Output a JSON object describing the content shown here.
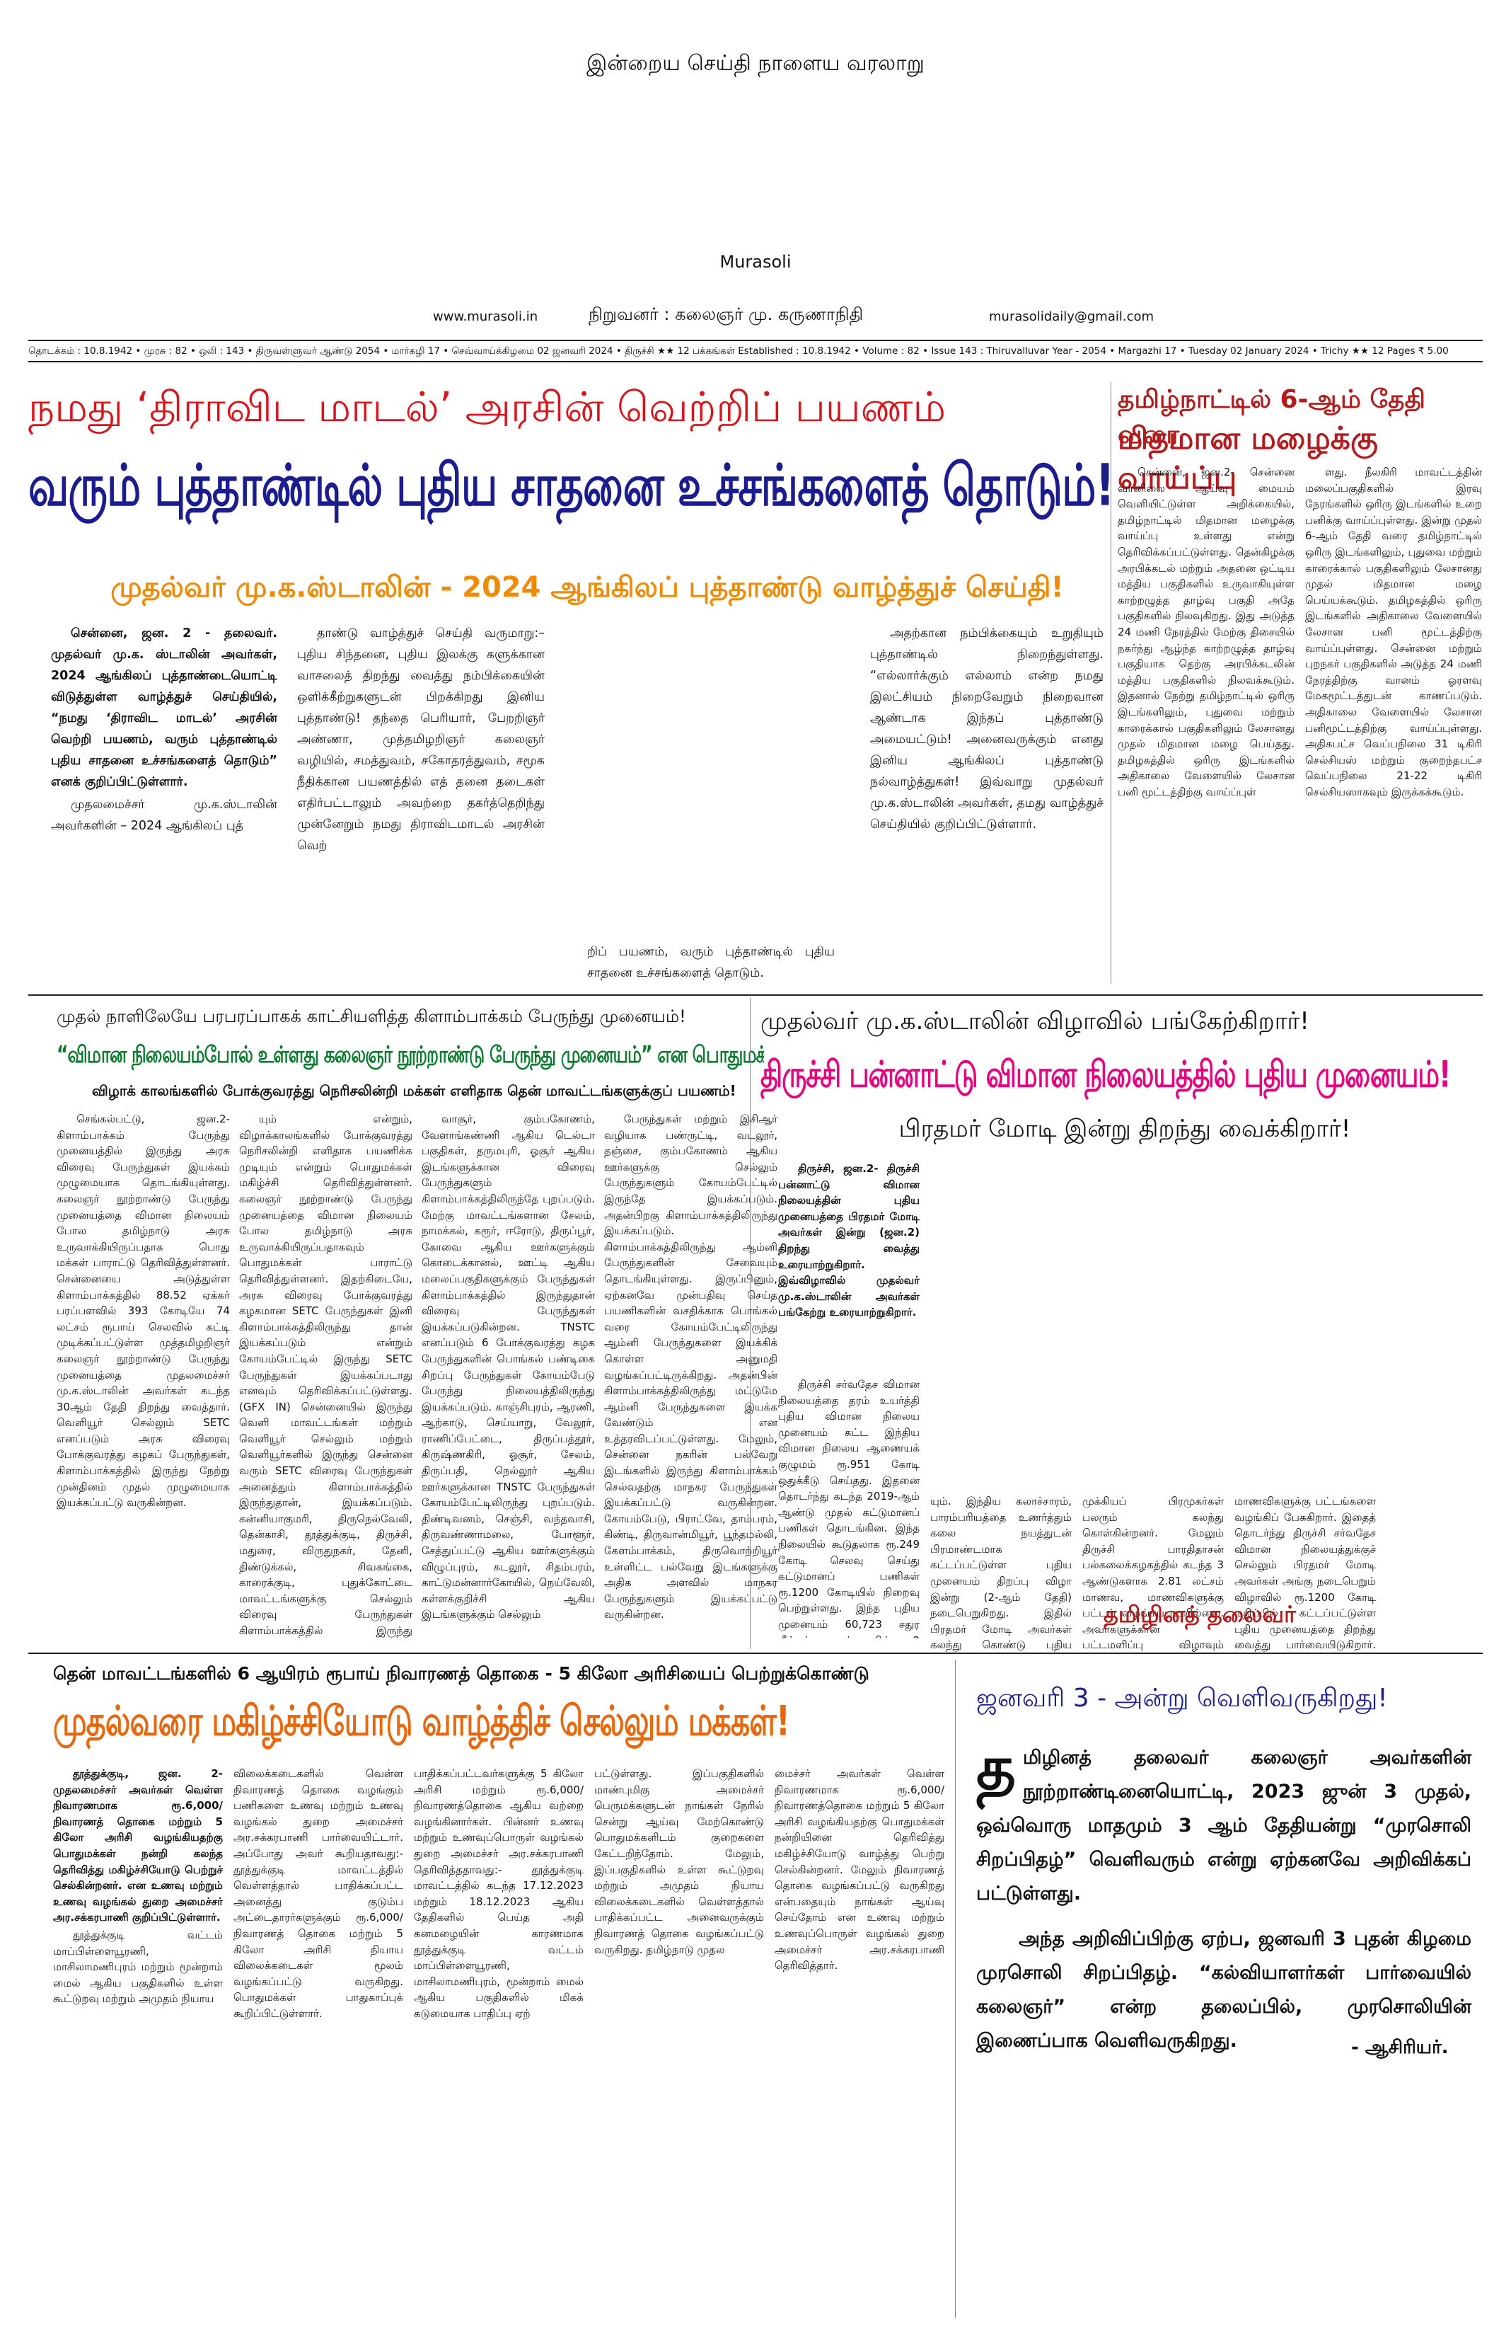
{
  "masthead": {
    "slogan": "இன்றைய செய்தி நாளைய வரலாறு",
    "name": "Murasoli",
    "website": "www.murasoli.in",
    "founder": "நிறுவனர் : கலைஞர் மு. கருணாநிதி",
    "email": "murasolidaily@gmail.com",
    "infoline": "தொடக்கம் : 10.8.1942 • முரசு : 82 • ஒலி : 143 • திருவள்ளுவர் ஆண்டு 2054 • மார்கழி 17 • செவ்வாய்க்கிழமை 02 ஜனவரி 2024 • திருச்சி ★★  12 பக்கங்கள்  Established : 10.8.1942 • Volume : 82 • Issue 143 : Thiruvalluvar Year - 2054 • Margazhi 17 • Tuesday 02 January 2024 • Trichy ★★ 12 Pages ₹ 5.00"
  },
  "lead": {
    "kicker": "நமது ‘திராவிட மாடல்’ அரசின் வெற்றிப் பயணம்",
    "headline": "வரும் புத்தாண்டில் புதிய சாதனை உச்சங்களைத் தொடும்!",
    "subhead": "முதல்வர் மு.க.ஸ்டாலின் - 2024 ஆங்கிலப் புத்தாண்டு வாழ்த்துச் செய்தி!",
    "col1_bold": "சென்னை, ஜன. 2 - தலைவர். முதல்வர் மு.க. ஸ்டாலின் அவர்கள், 2024 ஆங்கிலப் புத்தாண்டையொட்டி விடுத்துள்ள வாழ்த்துச் செய்தியில், “நமது ‘திராவிட மாடல்’ அரசின் வெற்றி பயணம், வரும் புத்தாண்டில் புதிய சாதனை உச்சங்களைத் தொடும்” எனக் குறிப்பிட்டுள்ளார்.",
    "col1": "முதலமைச்சர் மு.க.ஸ்டாலின் அவர்களின் – 2024 ஆங்கிலப் புத்",
    "col2": "தாண்டு வாழ்த்துச் செய்தி வருமாறு:– புதிய சிந்தனை, புதிய இலக்கு களுக்கான வாசலைத் திறந்து வைத்து நம்பிக்கையின் ஒளிக்கீற்றுகளுடன் பிறக்கிறது இனிய புத்தாண்டு! தந்தை பெரியார், பேறறிஞர் அண்ணா, முத்தமிழறிஞர் கலைஞர் வழியில், சமத்துவம், சகோதரத்துவம், சமூக நீதிக்கான பயணத்தில் எத் தனை தடைகள் எதிர்பட்டாலும் அவற்றை தகர்த்தெறிந்து முன்னேறும் நமது திராவிடமாடல் அரசின் வெற்",
    "col3": "றிப் பயணம், வரும் புத்தாண்டில் புதிய சாதனை உச்சங்களைத் தொடும்.",
    "col4": "அதற்கான நம்பிக்கையும் உறுதியும் புத்தாண்டில் நிறைந்துள்ளது. “எல்லார்க்கும் எல்லாம் என்ற நமது இலட்சியம் நிறைவேறும் நிறைவான ஆண்டாக இந்தப் புத்தாண்டு அமையட்டும்! அனைவருக்கும் எனது இனிய ஆங்கிலப் புத்தாண்டு நல்வாழ்த்துகள்! இவ்வாறு முதல்வர் மு.க.ஸ்டாலின் அவர்கள், தமது வாழ்த்துச் செய்தியில் குறிப்பிட்டுள்ளார்."
  },
  "rain": {
    "kicker": "தமிழ்நாட்டில் 6-ஆம் தேதி வரை",
    "headline": "மிதமான மழைக்கு வாய்ப்பு",
    "col1": "சென்னை, ஜன.2- சென்னை வானிலை ஆய்வு மையம் வெளியிட்டுள்ள அறிக்கையில், தமிழ்நாட்டில் மிதமான மழைக்கு வாய்ப்பு உள்ளது என்று தெரிவிக்கப்பட்டுள்ளது. தென்கிழக்கு அரபிக்கடல் மற்றும் அதனை ஒட்டிய மத்திய பகுதிகளில் உருவாகியுள்ள காற்றழுத்த தாழ்வு பகுதி அதே பகுதிகளில் நிலவுகிறது. இது அடுத்த 24 மணி நேரத்தில் மேற்கு திசையில் நகர்ந்து ஆழ்ந்த காற்றழுத்த தாழ்வு பகுதியாக தெற்கு அரபிக்கடலின் மத்திய பகுதிகளில் நிலவக்கூடும். இதனால் நேற்று தமிழ்நாட்டில் ஒரிரு இடங்களிலும், புதுவை மற்றும் காரைக்கால் பகுதிகளிலும் லேசானது முதல் மிதமான மழை பெய்தது. தமிழகத்தில் ஒரிரு இடங்களில் அதிகாலை வேளையில் லேசான பனி மூட்டத்திற்கு வாய்ப்புள்",
    "col2": "ளது. நீலகிரி மாவட்டத்தின் மலைப்பகுதிகளில் இரவு நேரங்களில் ஒரிரு இடங்களில் உறை பனிக்கு வாய்ப்புள்ளது. இன்று முதல் 6-ஆம் தேதி வரை தமிழ்நாட்டில் ஒரிரு இடங்களிலும், புதுவை மற்றும் காரைக்கால் பகுதிகளிலும் லேசானது முதல் மிதமான மழை பெய்யக்கூடும். தமிழகத்தில் ஒரிரு இடங்களில் அதிகாலை வேளையில் லேசான பனி மூட்டத்திற்கு வாய்ப்புள்ளது. சென்னை மற்றும் புறநகர் பகுதிகளில் அடுத்த 24 மணி நேரத்திற்கு வானம் ஓரளவு மேகமூட்டத்துடன் காணப்படும். அதிகாலை வேளையில் லேசான பனிமூட்டத்திற்கு வாய்ப்புள்ளது. அதிகபட்ச வெப்பநிலை 31 டிகிரி செல்சியஸ் மற்றும் குறைந்தபட்ச வெப்பநிலை 21-22 டிகிரி செல்சியஸாகவும் இருக்கக்கூடும்."
  },
  "bus": {
    "kicker": "முதல் நாளிலேயே பரபரப்பாகக் காட்சியளித்த கிளாம்பாக்கம் பேருந்து முனையம்!",
    "headline": "“விமான நிலையம்போல் உள்ளது கலைஞர் நூற்றாண்டு பேருந்து முனையம்” என பொதுமக்கள் மகிழ்ச்சி!",
    "subhead": "விழாக் காலங்களில் போக்குவரத்து நெரிசலின்றி மக்கள் எளிதாக தென் மாவட்டங்களுக்குப் பயணம்!",
    "col1": "செங்கல்பட்டு, ஜன.2- கிளாம்பாக்கம் பேருந்து முனையத்தில் இருந்து அரசு விரைவு பேருந்துகள் இயக்கம் முழுமையாக தொடங்கியுள்ளது. கலைஞர் நூற்றாண்டு பேருந்து முனையத்தை விமான நிலையம் போல தமிழ்நாடு அரசு உருவாக்கியிருப்பதாக பொது மக்கள் பாராட்டு தெரிவித்துள்ளனர். சென்னையை அடுத்துள்ள கிளாம்பாக்கத்தில் 88.52 ஏக்கர் பரப்பளவில் 393 கோடியே 74 லட்சம் ரூபாய் செலவில் கட்டி முடிக்கப்பட்டுள்ள முத்தமிழறிஞர் கலைஞர் நூற்றாண்டு பேருந்து முனையத்தை முதலமைச்சர் மு.க.ஸ்டாலின் அவர்கள் கடந்த 30ஆம் தேதி திறந்து வைத்தார். வெளியூர் செல்லும் SETC எனப்படும் அரசு விரைவு போக்குவரத்து கழகப் பேருந்துகள், கிளாம்பாக்கத்தில் இருந்து நேற்று முன்தினம் முதல் முழுமையாக இயக்கப்பட்டு வருகின்றன.",
    "col2": "யும் என்றும், விழாக்காலங்களில் போக்குவரத்து நெரிசலின்றி எளிதாக பயணிக்க முடியும் என்றும் பொதுமக்கள் மகிழ்ச்சி தெரிவித்துள்ளனர். கலைஞர் நூற்றாண்டு பேருந்து முனையத்தை விமான நிலையம் போல தமிழ்நாடு அரசு உருவாக்கியிருப்பதாகவும் பொதுமக்கள் பாராட்டு தெரிவித்துள்ளனர். இதற்கிடையே, அரசு விரைவு போக்குவரத்து கழகமான SETC பேருந்துகள் இனி கிளாம்பாக்கத்திலிருந்து தான் இயக்கப்படும் என்றும் கோயம்பேட்டில் இருந்து SETC பேருந்துகள் இயக்கப்படாது எனவும் தெரிவிக்கப்பட்டுள்ளது. (GFX IN) சென்னையில் இருந்து வெளி மாவட்டங்கள் மற்றும் வெளியூர் செல்லும் மற்றும் வெளியூர்களில் இருந்து சென்னை வரும் SETC விரைவு பேருந்துகள் அனைத்தும் கிளாம்பாக்கத்தில் இருந்துதான், இயக்கப்படும். கன்னியாகுமரி, திருநெல்வேலி, தென்காசி, தூத்துக்குடி, திருச்சி, மதுரை, விருதுநகர், தேனி, திண்டுக்கல், சிவகங்கை, காரைக்குடி, புதுக்கோட்டை மாவட்டங்களுக்கு செல்லும் விரைவு பேருந்துகள் கிளாம்பாக்கத்தில் இருந்து இயக்கப்படுகின்றன.",
    "col3": "வாசூர், கும்பகோணம், வேளாங்கண்ணி ஆகிய டெல்டா பகுதிகள், தருமபுரி, ஓசூர் ஆகிய இடங்களுக்கான விரைவு பேருந்துகளும் கிளாம்பாக்கத்திலிருந்தே புறப்படும். மேற்கு மாவட்டங்களான சேலம், நாமக்கல், கரூர், ஈரோடு, திருப்பூர், கோவை ஆகிய ஊர்களுக்கும் கொடைக்கானல், ஊட்டி ஆகிய மலைப்பகுதிகளுக்கும் பேருந்துகள் கிளாம்பாக்கத்தில் இருந்துதான் விரைவு பேருந்துகள் இயக்கப்படுகின்றன. TNSTC எனப்படும் 6 போக்குவரத்து கழக பேருந்துகளின் பொங்கல் பண்டிகை சிறப்பு பேருந்துகள் கோயம்பேடு பேருந்து நிலையத்திலிருந்து இயக்கப்படும். காஞ்சிபுரம், ஆரணி, ஆற்காடு, செய்யாறு, வேலூர், ராணிப்பேட்டை, திருப்பத்தூர், கிருஷ்ணகிரி, ஓசூர், சேலம், திருப்பதி, நெல்லூர் ஆகிய ஊர்களுக்கான TNSTC பேருந்துகள் கோயம்பேட்டிலிருந்து புறப்படும். திண்டிவனம், செஞ்சி, வந்தவாசி, திருவண்ணாமலை, போளூர், சேத்துப்பட்டு ஆகிய ஊர்களுக்கும் விழுப்புரம், கடலூர், சிதம்பரம், காட்டுமன்னார்கோயில், நெய்வேலி, கள்ளக்குறிச்சி ஆகிய இடங்களுக்கும் செல்லும்",
    "col4": "பேருந்துகள் மற்றும் இசிஆர் வழியாக பண்ருட்டி, வடலூர், தஞ்சை, கும்பகோணம் ஆகிய ஊர்களுக்கு செல்லும் பேருந்துகளும் கோயம்பேட்டில் இருந்தே இயக்கப்படும். அதன்பிறகு கிளாம்பாக்கத்திலிருந்து இயக்கப்படும். கிளாம்பாக்கத்திலிருந்து ஆம்னி பேருந்துகளின் சேவையும் தொடங்கியுள்ளது. இருப்பினும், ஏற்கனவே முன்பதிவு செய்த பயணிகளின் வசதிக்காக பொங்கல் வரை கோயம்பேட்டிலிருந்து ஆம்னி பேருந்துகளை இயக்கிக் கொள்ள அனுமதி வழங்கப்பட்டிருக்கிறது. அதன்பின் கிளாம்பாக்கத்திலிருந்து மட்டுமே ஆம்னி பேருந்துகளை இயக்க வேண்டும் என உத்தரவிடப்பட்டுள்ளது. மேலும், சென்னை நகரின் பல்வேறு இடங்களில் இருந்து கிளாம்பாக்கம் செல்வதற்கு மாநகர பேருந்துகள் இயக்கப்பட்டு வருகின்றன. கோயம்பேடு, பிராட்வே, தாம்பரம், கிண்டி, திருவான்மியூர், பூந்தமல்லி, கேளம்பாக்கம், திருவொற்றியூர் உள்ளிட்ட பல்வேறு இடங்களுக்கு அதிக அளவில் மாநகர பேருந்துகளும் இயக்கப்பட்டு வருகின்றன."
  },
  "airport": {
    "kicker": "முதல்வர் மு.க.ஸ்டாலின் விழாவில் பங்கேற்கிறார்!",
    "headline": "திருச்சி பன்னாட்டு விமான நிலையத்தில் புதிய முனையம்!",
    "subhead": "பிரதமர் மோடி இன்று திறந்து வைக்கிறார்!",
    "lead_bold": "திருச்சி, ஜன.2- திருச்சி பன்னாட்டு விமான நிலையத்தின் புதிய முனையத்தை பிரதமர் மோடி அவர்கள் இன்று (ஜன.2) திறந்து வைத்து உரையாற்றுகிறார். இவ்விழாவில் முதல்வர் மு.க.ஸ்டாலின் அவர்கள் பங்கேற்று உரையாற்றுகிறார்.",
    "col1": "திருச்சி சர்வதேச விமான நிலையத்தை தரம் உயர்த்தி புதிய விமான நிலைய முனையம் கட்ட இந்திய விமான நிலைய ஆணையக் குழுமம் ரூ.951 கோடி ஒதுக்கீடு செய்தது. இதனை தொடர்ந்து கடந்த 2019-ஆம் ஆண்டு முதல் கட்டுமானப் பணிகள் தொடங்கின. இந்த நிலையில் கூடுதலாக ரூ.249 கோடி செலவு செய்து கட்டுமானப் பணிகள் ரூ.1200 கோடியில் நிறைவு பெற்றுள்ளது. இந்த புதிய முனையம் 60,723 சதுர மீட்டர் பரப்பளவில் 2 அடுக்குகளைக் கொண்டதாக அமைக்கப்பட்டுள்ளது. இதில் ஒரே நேரத்தில் 4000 சர்வதேச பயணிகள், 1500 உள்நாட்டு பயணிகளை கையாள முடி",
    "col2": "யும். இந்திய கலாச்சாரம், பாரம்பரியத்தை உணர்த்தும் கலை நயத்துடன் பிரமாண்டமாக கட்டப்பட்டுள்ள புதிய முனையம் திறப்பு விழா இன்று (2-ஆம் தேதி) நடைபெறுகிறது. இதில் பிரதமர் மோடி அவர்கள் கலந்து கொண்டு புதிய முனையத்தை திறந்து வைப்பதுடன், பல்வேறு புதிய திட்டங்களுக்கு அடிக்கல் நாட்டி, முடிவுற்ற திட்டங்களை தொடங்கி வைக்கிறார். இந்த விழாவில் முதல்வர் மு.க.ஸ்டாலின் அவர்களும்",
    "col3": "முக்கியப் பிரமுகர்கள் பலரும் கலந்து கொள்கின்றனர். மேலும் திருச்சி பாரதிதாசன் பல்கலைக்கழகத்தில் கடந்த 3 ஆண்டுகளாக 2.81 லட்சம் மாணவ, மாணவிகளுக்கு பட்டம் வழங்கப்படவில்லை. அவர்களுக்கான பட்டமளிப்பு விழாவும் இன்று நடைபெறுகிறது. இந்த விழாவிலும் பிரதமர் மோடி அவர்கள் கலந்துகொண்டு மாணவ,",
    "col4": "மாணவிகளுக்கு பட்டங்களை வழங்கிப் பேசுகிறார். இதைத் தொடர்ந்து திருச்சி சர்வதேச விமான நிலையத்துக்குச் செல்லும் பிரதமர் மோடி அவர்கள் அங்கு நடைபெறும் விழாவில் ரூ.1200 கோடி மதிப்பில் கட்டப்பட்டுள்ள புதிய முனையத்தை திறந்து வைத்து பார்வையிடுகிறார். அப்போது புதிய திட்டங்களுக்கு அடிக்கல் நாட்டி, முடிவுற்ற திட்டங்களை தொடங்கி வைக்கிறார்.",
    "signature": "தமிழினத் தலைவர்"
  },
  "relief": {
    "kicker": "தென் மாவட்டங்களில் 6 ஆயிரம் ரூபாய் நிவாரணத் தொகை - 5 கிலோ அரிசியைப் பெற்றுக்கொண்டு",
    "headline": "முதல்வரை மகிழ்ச்சியோடு வாழ்த்திச் செல்லும் மக்கள்!",
    "col1_bold": "தூத்துக்குடி, ஜன. 2- முதலமைச்சர் அவர்கள் வெள்ள நிவாரணமாக ரூ.6,000/ நிவாரணத் தொகை மற்றும் 5 கிலோ அரிசி வழங்கியதற்கு பொதுமக்கள் நன்றி கலந்த தெரிவித்து மகிழ்ச்சியோடு பெற்றுச் செல்கின்றனர். என உணவு மற்றும் உணவு வழங்கல் துறை அமைச்சர் அர.சக்கரபாணி குறிப்பிட்டுள்ளார்.",
    "col1": "தூத்துக்குடி வட்டம் மாப்பிள்ளையூரணி, மாசிலாமணிபுரம் மற்றும் மூன்றாம் மைல் ஆகிய பகுதிகளில் உள்ள கூட்டுறவு மற்றும் அமுதம் நியாய",
    "col2": "விலைக்கடைகளில் வெள்ள நிவாரணத் தொகை வழங்கும் பணிகளை உணவு மற்றும் உணவு வழங்கல் துறை அமைச்சர் அர.சக்கரபாணி பார்வையிட்டார். அப்போது அவர் கூறியதாவது:- தூத்துக்குடி மாவட்டத்தில் வெள்ளத்தால் பாதிக்கப்பட்ட அனைத்து குடும்ப அட்டைதாரர்களுக்கும் ரூ.6,000/ நிவாரணத் தொகை மற்றும் 5 கிலோ அரிசி நியாய விலைக்கடைகள் மூலம் வழங்கப்பட்டு வருகிறது. பொதுமக்கள் பாதுகாப்புக் கூறிப்பிட்டுள்ளார்.",
    "col3": "பாதிக்கப்பட்டவர்களுக்கு 5 கிலோ அரிசி மற்றும் ரூ.6,000/ நிவாரணத்தொகை ஆகிய வற்றை வழங்கினார்கள். பின்னர் உணவு மற்றும் உணவுப்பொருள் வழங்கல் துறை அமைச்சர் அர.சக்கரபாணி தெரிவித்ததாவது:- தூத்துக்குடி மாவட்டத்தில் கடந்த 17.12.2023 மற்றும் 18.12.2023 ஆகிய தேதிகளில் பெய்த அதி கனமழையின் காரணமாக தூத்துக்குடி வட்டம் மாப்பிள்ளையூரணி, மாசிலாமணிபுரம், மூன்றாம் மைல் ஆகிய பகுதிகளில் மிகக் கடுமையாக பாதிப்பு ஏற்",
    "col4": "பட்டுள்ளது. இப்பகுதிகளில் மாண்புமிகு அமைச்சர் பெருமக்களுடன் நாங்கள் நேரில் சென்று ஆய்வு மேற்கொண்டு பொதுமக்களிடம் குறைகளை கேட்டறிந்தோம். மேலும், இப்பகுதிகளில் உள்ள கூட்டுறவு மற்றும் அமுதம் நியாய விலைக்கடைகளில் வெள்ளத்தால் பாதிக்கப்பட்ட அனைவருக்கும் நிவாரணத் தொகை வழங்கப்பட்டு வருகிறது. தமிழ்நாடு முதல",
    "col5": "மைச்சர் அவர்கள் வெள்ள நிவாரணமாக ரூ.6,000/ நிவாரணத்தொகை மற்றும் 5 கிலோ அரிசி வழங்கியதற்கு பொதுமக்கள் நன்றியினை தெரிவித்து மகிழ்ச்சியோடு வாழ்த்து பெற்று செல்கின்றனர். மேலும் நிவாரணத் தொகை வழங்கப்பட்டு வருகிறது என்பதையும் நாங்கள் ஆய்வு செய்தோம் என உணவு மற்றும் உணவுப்பொருள் வழங்கல் துறை அமைச்சர் அர.சக்கரபாணி தெரிவித்தார்."
  },
  "notice": {
    "headline": "ஜனவரி 3 - அன்று வெளிவருகிறது!",
    "dropcap": "த",
    "body": "மிழினத் தலைவர் கலைஞர் அவர்களின் நூற்றாண்டினையொட்டி, 2023 ஜுன் 3 முதல், ஒவ்வொரு மாதமும் 3 ஆம் தேதியன்று “முரசொலி சிறப்பிதழ்” வெளிவரும் என்று ஏற்கனவே அறிவிக்கப் பட்டுள்ளது.",
    "body2": "அந்த அறிவிப்பிற்கு ஏற்ப, ஜனவரி 3 புதன் கிழமை முரசொலி சிறப்பிதழ். “கல்வியாளர்கள் பார்வையில் கலைஞர்” என்ற தலைப்பில், முரசொலியின் இணைப்பாக வெளிவருகிறது.",
    "signature": "- ஆசிரியர்."
  },
  "colors": {
    "red": "#d8151b",
    "blue": "#1b1c8f",
    "orange": "#f08a00",
    "green": "#0a7a2f",
    "magenta": "#e6007e"
  }
}
